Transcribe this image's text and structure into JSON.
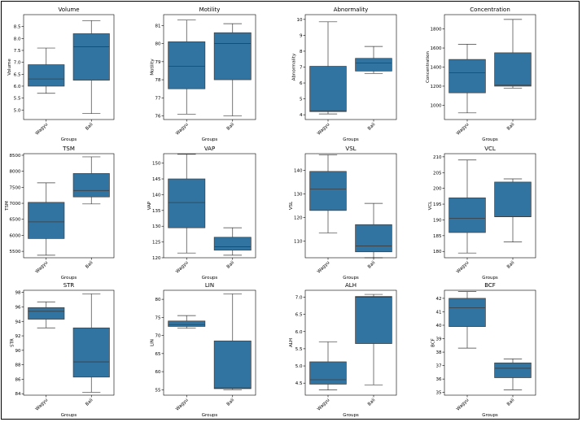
{
  "chart_data": [
    {
      "type": "box",
      "title": "Volume",
      "xlabel": "Groups",
      "ylabel": "Volume",
      "categories": [
        "Wagyu",
        "Bali"
      ],
      "ylim": [
        4.6,
        9.0
      ],
      "yticks": [
        "5.0",
        "5.5",
        "6.0",
        "6.5",
        "7.0",
        "7.5",
        "8.0",
        "8.5"
      ],
      "boxes": [
        {
          "whisker_low": 5.7,
          "q1": 6.0,
          "median": 6.3,
          "q3": 6.9,
          "whisker_high": 7.6
        },
        {
          "whisker_low": 4.85,
          "q1": 6.25,
          "median": 7.65,
          "q3": 8.2,
          "whisker_high": 8.75
        }
      ]
    },
    {
      "type": "box",
      "title": "Motility",
      "xlabel": "Groups",
      "ylabel": "Motility",
      "categories": [
        "Wagyu",
        "Bali"
      ],
      "ylim": [
        75.8,
        81.6
      ],
      "yticks": [
        "76",
        "77",
        "78",
        "79",
        "80",
        "81"
      ],
      "boxes": [
        {
          "whisker_low": 76.1,
          "q1": 77.5,
          "median": 78.75,
          "q3": 80.1,
          "whisker_high": 81.3
        },
        {
          "whisker_low": 76.0,
          "q1": 78.0,
          "median": 80.0,
          "q3": 80.6,
          "whisker_high": 81.1
        }
      ]
    },
    {
      "type": "box",
      "title": "Abnormality",
      "xlabel": "Groups",
      "ylabel": "Abnormality",
      "categories": [
        "Wagyu",
        "Bali"
      ],
      "ylim": [
        3.7,
        10.3
      ],
      "yticks": [
        "4",
        "5",
        "6",
        "7",
        "8",
        "9",
        "10"
      ],
      "boxes": [
        {
          "whisker_low": 4.05,
          "q1": 4.2,
          "median": 4.25,
          "q3": 7.05,
          "whisker_high": 9.85
        },
        {
          "whisker_low": 6.6,
          "q1": 6.75,
          "median": 7.25,
          "q3": 7.55,
          "whisker_high": 8.3
        }
      ]
    },
    {
      "type": "box",
      "title": "Concentration",
      "xlabel": "Groups",
      "ylabel": "Concentration",
      "categories": [
        "Wagyu",
        "Bali"
      ],
      "ylim": [
        850,
        1950
      ],
      "yticks": [
        "1000",
        "1200",
        "1400",
        "1600",
        "1800"
      ],
      "boxes": [
        {
          "whisker_low": 920,
          "q1": 1130,
          "median": 1340,
          "q3": 1480,
          "whisker_high": 1640
        },
        {
          "whisker_low": 1180,
          "q1": 1200,
          "median": 1210,
          "q3": 1550,
          "whisker_high": 1900
        }
      ]
    },
    {
      "type": "box",
      "title": "TSM",
      "xlabel": "Groups",
      "ylabel": "TSM",
      "categories": [
        "Wagyu",
        "Bali"
      ],
      "ylim": [
        5300,
        8550
      ],
      "yticks": [
        "5500",
        "6000",
        "6500",
        "7000",
        "7500",
        "8000",
        "8500"
      ],
      "boxes": [
        {
          "whisker_low": 5380,
          "q1": 5900,
          "median": 6420,
          "q3": 7030,
          "whisker_high": 7640
        },
        {
          "whisker_low": 6980,
          "q1": 7200,
          "median": 7400,
          "q3": 7930,
          "whisker_high": 8450
        }
      ]
    },
    {
      "type": "box",
      "title": "VAP",
      "xlabel": "Groups",
      "ylabel": "VAP",
      "categories": [
        "Wagyu",
        "Bali"
      ],
      "ylim": [
        120.0,
        153.0
      ],
      "yticks": [
        "120",
        "125",
        "130",
        "135",
        "140",
        "145",
        "150"
      ],
      "boxes": [
        {
          "whisker_low": 121.5,
          "q1": 129.5,
          "median": 137.5,
          "q3": 145.0,
          "whisker_high": 152.8
        },
        {
          "whisker_low": 120.8,
          "q1": 122.4,
          "median": 123.5,
          "q3": 126.5,
          "whisker_high": 129.5
        }
      ]
    },
    {
      "type": "box",
      "title": "VSL",
      "xlabel": "Groups",
      "ylabel": "VSL",
      "categories": [
        "Wagyu",
        "Bali"
      ],
      "ylim": [
        103.0,
        147.0
      ],
      "yticks": [
        "110",
        "120",
        "130",
        "140"
      ],
      "boxes": [
        {
          "whisker_low": 113.5,
          "q1": 123.0,
          "median": 132.0,
          "q3": 139.5,
          "whisker_high": 146.5
        },
        {
          "whisker_low": 103.0,
          "q1": 105.5,
          "median": 108.0,
          "q3": 117.0,
          "whisker_high": 126.0
        }
      ]
    },
    {
      "type": "box",
      "title": "VCL",
      "xlabel": "Groups",
      "ylabel": "VCL",
      "categories": [
        "Wagyu",
        "Bali"
      ],
      "ylim": [
        178,
        211
      ],
      "yticks": [
        "180",
        "185",
        "190",
        "195",
        "200",
        "205",
        "210"
      ],
      "boxes": [
        {
          "whisker_low": 179.5,
          "q1": 186.0,
          "median": 190.5,
          "q3": 197.0,
          "whisker_high": 209.0
        },
        {
          "whisker_low": 183.0,
          "q1": 191.0,
          "median": 191.0,
          "q3": 202.0,
          "whisker_high": 203.0
        }
      ]
    },
    {
      "type": "box",
      "title": "STR",
      "xlabel": "Groups",
      "ylabel": "STR",
      "categories": [
        "Wagyu",
        "Bali"
      ],
      "ylim": [
        83.8,
        98.3
      ],
      "yticks": [
        "84",
        "86",
        "88",
        "90",
        "92",
        "94",
        "96",
        "98"
      ],
      "boxes": [
        {
          "whisker_low": 93.1,
          "q1": 94.3,
          "median": 95.4,
          "q3": 95.9,
          "whisker_high": 96.7
        },
        {
          "whisker_low": 84.2,
          "q1": 86.3,
          "median": 88.4,
          "q3": 93.1,
          "whisker_high": 97.8
        }
      ]
    },
    {
      "type": "box",
      "title": "LIN",
      "xlabel": "Groups",
      "ylabel": "LIN",
      "categories": [
        "Wagyu",
        "Bali"
      ],
      "ylim": [
        53.5,
        82.5
      ],
      "yticks": [
        "55",
        "60",
        "65",
        "70",
        "75",
        "80"
      ],
      "boxes": [
        {
          "whisker_low": 72.0,
          "q1": 72.5,
          "median": 73.0,
          "q3": 74.0,
          "whisker_high": 75.5
        },
        {
          "whisker_low": 55.0,
          "q1": 55.3,
          "median": 55.5,
          "q3": 68.5,
          "whisker_high": 81.5
        }
      ]
    },
    {
      "type": "box",
      "title": "ALH",
      "xlabel": "Groups",
      "ylabel": "ALH",
      "categories": [
        "Wagyu",
        "Bali"
      ],
      "ylim": [
        4.15,
        7.2
      ],
      "yticks": [
        "4.5",
        "5.0",
        "5.5",
        "6.0",
        "6.5",
        "7.0"
      ],
      "boxes": [
        {
          "whisker_low": 4.3,
          "q1": 4.47,
          "median": 4.6,
          "q3": 5.12,
          "whisker_high": 5.7
        },
        {
          "whisker_low": 4.45,
          "q1": 5.65,
          "median": 7.0,
          "q3": 7.02,
          "whisker_high": 7.08
        }
      ]
    },
    {
      "type": "box",
      "title": "BCF",
      "xlabel": "Groups",
      "ylabel": "BCF",
      "categories": [
        "Wagyu",
        "Bali"
      ],
      "ylim": [
        34.8,
        42.6
      ],
      "yticks": [
        "35",
        "36",
        "37",
        "38",
        "39",
        "40",
        "41",
        "42"
      ],
      "boxes": [
        {
          "whisker_low": 38.3,
          "q1": 39.9,
          "median": 41.3,
          "q3": 42.0,
          "whisker_high": 42.5
        },
        {
          "whisker_low": 35.2,
          "q1": 36.1,
          "median": 36.8,
          "q3": 37.2,
          "whisker_high": 37.5
        }
      ]
    }
  ]
}
